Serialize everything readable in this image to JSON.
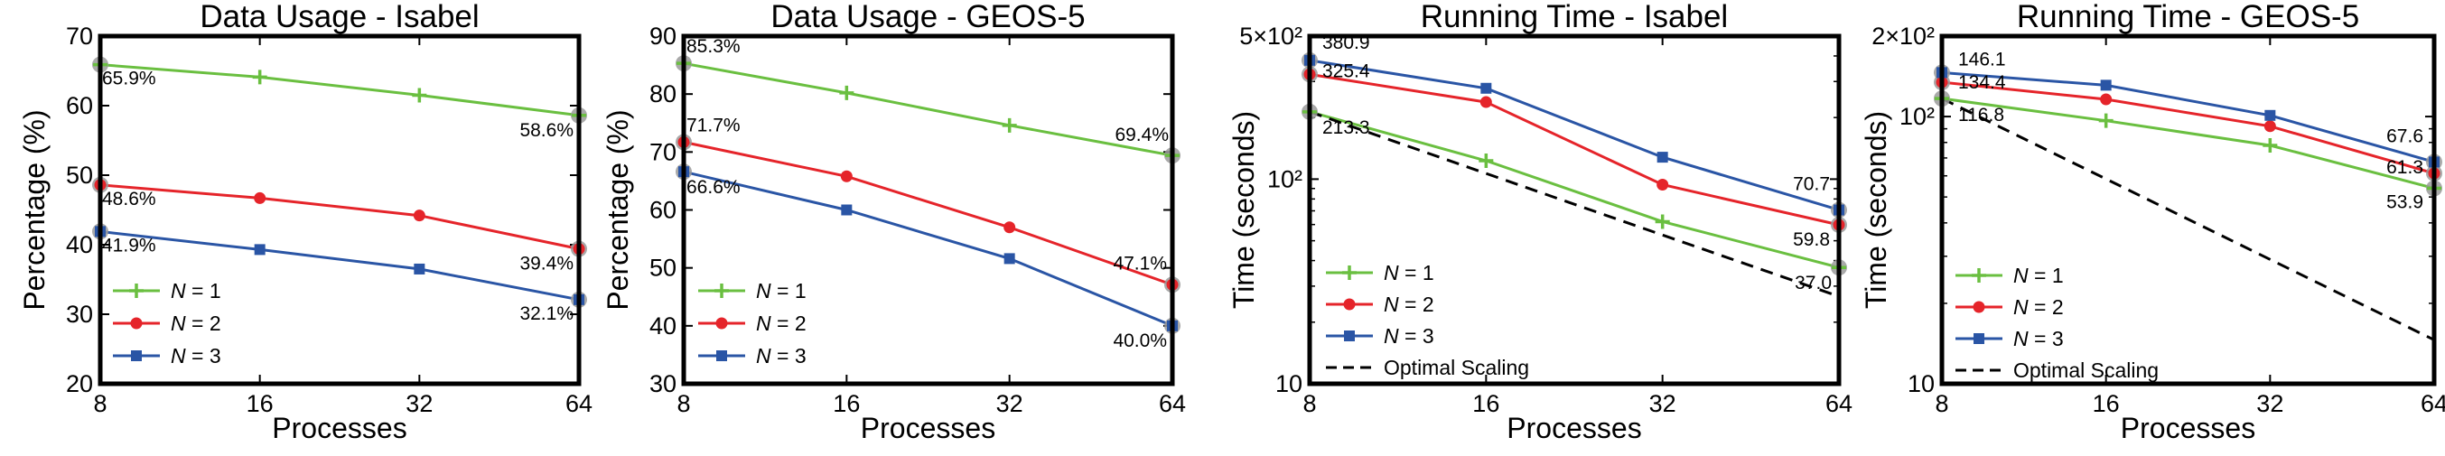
{
  "colors": {
    "n1": "#6abf40",
    "n2": "#e5242a",
    "n3": "#2a55a5",
    "opt": "#000000",
    "ring": "#9a9a9a"
  },
  "chart_data": [
    {
      "type": "line",
      "title": "Data Usage - Isabel",
      "xlabel": "Processes",
      "ylabel": "Percentage (%)",
      "yscale": "linear",
      "x": [
        8,
        16,
        32,
        64
      ],
      "xticks": [
        "8",
        "16",
        "32",
        "64"
      ],
      "ylim": [
        20,
        70
      ],
      "yticks": [
        20,
        30,
        40,
        50,
        60,
        70
      ],
      "yticklabels": [
        "20",
        "30",
        "40",
        "50",
        "60",
        "70"
      ],
      "legend": "bottom-left",
      "series": [
        {
          "name": "N = 1",
          "values": [
            65.9,
            64.1,
            61.5,
            58.6
          ],
          "marker": "plus",
          "color": "#6abf40"
        },
        {
          "name": "N = 2",
          "values": [
            48.6,
            46.7,
            44.2,
            39.4
          ],
          "marker": "circle",
          "color": "#e5242a"
        },
        {
          "name": "N = 3",
          "values": [
            41.9,
            39.3,
            36.5,
            32.1
          ],
          "marker": "square",
          "color": "#2a55a5"
        }
      ],
      "labels": [
        {
          "text": "65.9%",
          "si": 0,
          "pi": 0
        },
        {
          "text": "58.6%",
          "si": 0,
          "pi": 3
        },
        {
          "text": "48.6%",
          "si": 1,
          "pi": 0
        },
        {
          "text": "39.4%",
          "si": 1,
          "pi": 3
        },
        {
          "text": "41.9%",
          "si": 2,
          "pi": 0
        },
        {
          "text": "32.1%",
          "si": 2,
          "pi": 3
        }
      ]
    },
    {
      "type": "line",
      "title": "Data Usage - GEOS-5",
      "xlabel": "Processes",
      "ylabel": "Percentage (%)",
      "yscale": "linear",
      "x": [
        8,
        16,
        32,
        64
      ],
      "xticks": [
        "8",
        "16",
        "32",
        "64"
      ],
      "ylim": [
        30,
        90
      ],
      "yticks": [
        30,
        40,
        50,
        60,
        70,
        80,
        90
      ],
      "yticklabels": [
        "30",
        "40",
        "50",
        "60",
        "70",
        "80",
        "90"
      ],
      "legend": "top-left",
      "series": [
        {
          "name": "N = 1",
          "values": [
            85.3,
            80.2,
            74.6,
            69.4
          ],
          "marker": "plus",
          "color": "#6abf40"
        },
        {
          "name": "N = 2",
          "values": [
            71.7,
            65.8,
            57.0,
            47.1
          ],
          "marker": "circle",
          "color": "#e5242a"
        },
        {
          "name": "N = 3",
          "values": [
            66.6,
            60.0,
            51.6,
            40.0
          ],
          "marker": "square",
          "color": "#2a55a5"
        }
      ],
      "labels": [
        {
          "text": "85.3%",
          "si": 0,
          "pi": 0
        },
        {
          "text": "69.4%",
          "si": 0,
          "pi": 3
        },
        {
          "text": "71.7%",
          "si": 1,
          "pi": 0
        },
        {
          "text": "47.1%",
          "si": 1,
          "pi": 3
        },
        {
          "text": "66.6%",
          "si": 2,
          "pi": 0
        },
        {
          "text": "40.0%",
          "si": 2,
          "pi": 3
        }
      ]
    },
    {
      "type": "line",
      "title": "Running Time - Isabel",
      "xlabel": "Processes",
      "ylabel": "Time (seconds)",
      "yscale": "log",
      "x": [
        8,
        16,
        32,
        64
      ],
      "xticks": [
        "8",
        "16",
        "32",
        "64"
      ],
      "ylim": [
        10,
        500
      ],
      "yticks": [
        10,
        100,
        500
      ],
      "yticklabels": [
        "10",
        "10²",
        "5×10²"
      ],
      "legend": "bottom-left",
      "series": [
        {
          "name": "N = 1",
          "values": [
            213.3,
            123,
            62,
            37.0
          ],
          "marker": "plus",
          "color": "#6abf40"
        },
        {
          "name": "N = 2",
          "values": [
            325.4,
            238,
            94,
            59.8
          ],
          "marker": "circle",
          "color": "#e5242a"
        },
        {
          "name": "N = 3",
          "values": [
            380.9,
            278,
            128,
            70.7
          ],
          "marker": "square",
          "color": "#2a55a5"
        },
        {
          "name": "Optimal Scaling",
          "values": [
            213.3,
            106.65,
            53.3,
            26.7
          ],
          "marker": "none",
          "dash": true,
          "color": "#000000"
        }
      ],
      "labels": [
        {
          "text": "380.9",
          "si": 2,
          "pi": 0
        },
        {
          "text": "325.4",
          "si": 1,
          "pi": 0
        },
        {
          "text": "213.3",
          "si": 0,
          "pi": 0
        },
        {
          "text": "70.7",
          "si": 2,
          "pi": 3
        },
        {
          "text": "59.8",
          "si": 1,
          "pi": 3
        },
        {
          "text": "37.0",
          "si": 0,
          "pi": 3
        }
      ]
    },
    {
      "type": "line",
      "title": "Running Time - GEOS-5",
      "xlabel": "Processes",
      "ylabel": "Time (seconds)",
      "yscale": "log",
      "x": [
        8,
        16,
        32,
        64
      ],
      "xticks": [
        "8",
        "16",
        "32",
        "64"
      ],
      "ylim": [
        10,
        200
      ],
      "yticks": [
        10,
        100,
        200
      ],
      "yticklabels": [
        "10",
        "10²",
        "2×10²"
      ],
      "legend": "bottom-left",
      "series": [
        {
          "name": "N = 1",
          "values": [
            116.8,
            96.5,
            78,
            53.9
          ],
          "marker": "plus",
          "color": "#6abf40"
        },
        {
          "name": "N = 2",
          "values": [
            134.4,
            116,
            92,
            61.3
          ],
          "marker": "circle",
          "color": "#e5242a"
        },
        {
          "name": "N = 3",
          "values": [
            146.1,
            131,
            101,
            67.6
          ],
          "marker": "square",
          "color": "#2a55a5"
        },
        {
          "name": "Optimal Scaling",
          "values": [
            116.8,
            58.4,
            29.2,
            14.6
          ],
          "marker": "none",
          "dash": true,
          "color": "#000000"
        }
      ],
      "labels": [
        {
          "text": "146.1",
          "si": 2,
          "pi": 0
        },
        {
          "text": "134.4",
          "si": 1,
          "pi": 0
        },
        {
          "text": "116.8",
          "si": 0,
          "pi": 0
        },
        {
          "text": "67.6",
          "si": 2,
          "pi": 3
        },
        {
          "text": "61.3",
          "si": 1,
          "pi": 3
        },
        {
          "text": "53.9",
          "si": 0,
          "pi": 3
        }
      ]
    }
  ]
}
